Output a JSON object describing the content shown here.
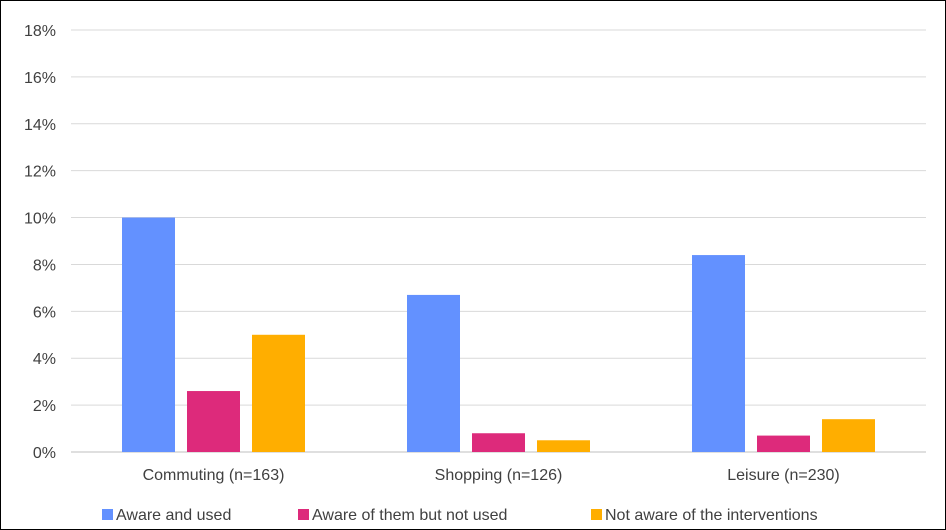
{
  "chart_data": {
    "type": "bar",
    "categories": [
      "Commuting (n=163)",
      "Shopping (n=126)",
      "Leisure (n=230)"
    ],
    "series": [
      {
        "name": "Aware and used",
        "color": "#6391FF",
        "values": [
          10.0,
          6.7,
          8.4
        ]
      },
      {
        "name": "Aware of them but not used",
        "color": "#DD2A7B",
        "values": [
          2.6,
          0.8,
          0.7
        ]
      },
      {
        "name": "Not aware of the interventions",
        "color": "#FFAE00",
        "values": [
          5.0,
          0.5,
          1.4
        ]
      }
    ],
    "y_ticks": [
      "0%",
      "2%",
      "4%",
      "6%",
      "8%",
      "10%",
      "12%",
      "14%",
      "16%",
      "18%"
    ],
    "ylim": [
      0,
      18
    ],
    "grid": true,
    "legend_position": "bottom",
    "title": "",
    "xlabel": "",
    "ylabel": ""
  }
}
